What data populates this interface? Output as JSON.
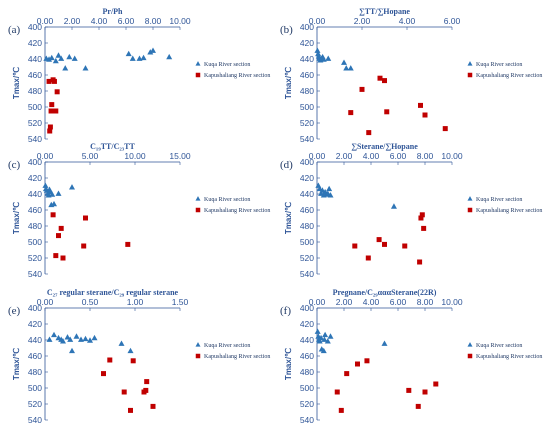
{
  "colors": {
    "kuqa": "#2e75b6",
    "kapushaliang": "#c00000",
    "axis": "#2f5597",
    "text": "#1f3864"
  },
  "chart_data": [
    {
      "type": "scatter",
      "panel": "(a)",
      "xlabel": "Pr/Ph",
      "ylabel": "Tmax/℃",
      "xlim": [
        0,
        10
      ],
      "xticks": [
        0,
        2,
        4,
        6,
        8,
        10
      ],
      "xtick_labels": [
        "0.00",
        "2.00",
        "4.00",
        "6.00",
        "8.00",
        "10.00"
      ],
      "ylim": [
        400,
        540
      ],
      "yticks": [
        400,
        420,
        440,
        460,
        480,
        500,
        520,
        540
      ],
      "x_axis_position": "top",
      "y_inverted": true,
      "grid": false,
      "legend_position": "right",
      "series": [
        {
          "name": "Kuqa River section",
          "marker": "triangle",
          "x": [
            0.1,
            0.3,
            0.5,
            0.8,
            1.0,
            1.2,
            1.5,
            1.8,
            2.2,
            3.0,
            6.2,
            6.5,
            7.0,
            7.3,
            7.8,
            8.0,
            9.2
          ],
          "y": [
            440,
            441,
            439,
            443,
            436,
            440,
            452,
            438,
            440,
            452,
            434,
            440,
            440,
            439,
            432,
            430,
            438
          ]
        },
        {
          "name": "Kapushaliang River section",
          "marker": "square",
          "x": [
            0.3,
            0.35,
            0.4,
            0.45,
            0.5,
            0.6,
            0.7,
            0.8,
            0.9
          ],
          "y": [
            468,
            530,
            525,
            505,
            497,
            466,
            468,
            505,
            481
          ]
        }
      ]
    },
    {
      "type": "scatter",
      "panel": "(b)",
      "xlabel": "∑TT/∑Hopane",
      "ylabel": "Tmax/℃",
      "xlim": [
        0,
        6
      ],
      "xticks": [
        0,
        2,
        4,
        6
      ],
      "xtick_labels": [
        "0.00",
        "2.00",
        "4.00",
        "6.00"
      ],
      "ylim": [
        400,
        540
      ],
      "yticks": [
        400,
        420,
        440,
        460,
        480,
        500,
        520,
        540
      ],
      "x_axis_position": "top",
      "y_inverted": true,
      "grid": false,
      "legend_position": "right",
      "series": [
        {
          "name": "Kuqa River section",
          "marker": "triangle",
          "x": [
            0.02,
            0.05,
            0.08,
            0.1,
            0.15,
            0.2,
            0.25,
            0.3,
            0.5,
            1.2,
            1.3,
            1.5
          ],
          "y": [
            430,
            434,
            437,
            440,
            442,
            440,
            438,
            441,
            440,
            445,
            452,
            452
          ]
        },
        {
          "name": "Kapushaliang River section",
          "marker": "square",
          "x": [
            1.5,
            2.0,
            2.3,
            2.8,
            3.0,
            3.1,
            4.6,
            4.8,
            5.7
          ],
          "y": [
            507,
            478,
            532,
            464,
            467,
            506,
            498,
            510,
            527
          ]
        }
      ]
    },
    {
      "type": "scatter",
      "panel": "(c)",
      "xlabel": "C₁₉TT/C₂₃TT",
      "ylabel": "Tmax/℃",
      "xlim": [
        0,
        15
      ],
      "xticks": [
        0,
        5,
        10,
        15
      ],
      "xtick_labels": [
        "0.00",
        "5.00",
        "10.00",
        "15.00"
      ],
      "ylim": [
        400,
        540
      ],
      "yticks": [
        400,
        420,
        440,
        460,
        480,
        500,
        520,
        540
      ],
      "x_axis_position": "top",
      "y_inverted": true,
      "grid": false,
      "legend_position": "right",
      "series": [
        {
          "name": "Kuqa River section",
          "marker": "triangle",
          "x": [
            0.05,
            0.1,
            0.2,
            0.3,
            0.4,
            0.5,
            0.6,
            0.7,
            0.8,
            1.0,
            1.5,
            3.0
          ],
          "y": [
            430,
            434,
            436,
            440,
            442,
            435,
            438,
            454,
            441,
            453,
            440,
            432
          ]
        },
        {
          "name": "Kapushaliang River section",
          "marker": "square",
          "x": [
            0.9,
            1.2,
            1.5,
            1.8,
            2.0,
            4.3,
            4.5,
            9.2
          ],
          "y": [
            466,
            517,
            492,
            483,
            520,
            505,
            470,
            503
          ]
        }
      ]
    },
    {
      "type": "scatter",
      "panel": "(d)",
      "xlabel": "∑Sterane/∑Hopane",
      "ylabel": "Tmax/℃",
      "xlim": [
        0,
        10
      ],
      "xticks": [
        0,
        2,
        4,
        6,
        8,
        10
      ],
      "xtick_labels": [
        "0.00",
        "2.00",
        "4.00",
        "6.00",
        "8.00",
        "10.00"
      ],
      "ylim": [
        400,
        540
      ],
      "yticks": [
        400,
        420,
        440,
        460,
        480,
        500,
        520,
        540
      ],
      "x_axis_position": "top",
      "y_inverted": true,
      "grid": false,
      "legend_position": "right",
      "series": [
        {
          "name": "Kuqa River section",
          "marker": "triangle",
          "x": [
            0.1,
            0.2,
            0.3,
            0.4,
            0.5,
            0.6,
            0.7,
            0.8,
            0.9,
            1.0,
            5.7
          ],
          "y": [
            430,
            434,
            440,
            436,
            442,
            438,
            441,
            440,
            434,
            442,
            456
          ]
        },
        {
          "name": "Kapushaliang River section",
          "marker": "square",
          "x": [
            2.8,
            3.8,
            4.6,
            5.0,
            6.5,
            7.6,
            7.7,
            7.8,
            7.9
          ],
          "y": [
            505,
            520,
            497,
            503,
            505,
            525,
            470,
            466,
            483
          ]
        }
      ]
    },
    {
      "type": "scatter",
      "panel": "(e)",
      "xlabel": "C₂₇ regular sterane/C₂₉ regular sterane",
      "ylabel": "Tmax/℃",
      "xlim": [
        0,
        1.5
      ],
      "xticks": [
        0,
        0.5,
        1.0,
        1.5
      ],
      "xtick_labels": [
        "0.00",
        "0.50",
        "1.00",
        "1.50"
      ],
      "ylim": [
        400,
        540
      ],
      "yticks": [
        400,
        420,
        440,
        460,
        480,
        500,
        520,
        540
      ],
      "x_axis_position": "top",
      "y_inverted": true,
      "grid": false,
      "legend_position": "right",
      "series": [
        {
          "name": "Kuqa River section",
          "marker": "triangle",
          "x": [
            0.05,
            0.1,
            0.15,
            0.18,
            0.2,
            0.25,
            0.28,
            0.3,
            0.35,
            0.4,
            0.45,
            0.5,
            0.55,
            0.85,
            0.95
          ],
          "y": [
            440,
            434,
            438,
            440,
            442,
            437,
            440,
            454,
            436,
            440,
            439,
            441,
            438,
            445,
            454
          ]
        },
        {
          "name": "Kapushaliang River section",
          "marker": "square",
          "x": [
            0.65,
            0.72,
            0.88,
            0.95,
            0.98,
            1.1,
            1.12,
            1.13,
            1.2
          ],
          "y": [
            482,
            465,
            505,
            528,
            466,
            505,
            503,
            492,
            523
          ]
        }
      ]
    },
    {
      "type": "scatter",
      "panel": "(f)",
      "xlabel": "Pregnane/C₂₉αααSterane(22R)",
      "ylabel": "Tmax/℃",
      "xlim": [
        0,
        10
      ],
      "xticks": [
        0,
        2,
        4,
        6,
        8,
        10
      ],
      "xtick_labels": [
        "0.00",
        "2.00",
        "4.00",
        "6.00",
        "8.00",
        "10.00"
      ],
      "ylim": [
        400,
        540
      ],
      "yticks": [
        400,
        420,
        440,
        460,
        480,
        500,
        520,
        540
      ],
      "x_axis_position": "top",
      "y_inverted": true,
      "grid": false,
      "legend_position": "right",
      "series": [
        {
          "name": "Kuqa River section",
          "marker": "triangle",
          "x": [
            0.05,
            0.1,
            0.15,
            0.2,
            0.3,
            0.35,
            0.5,
            0.55,
            0.6,
            0.8,
            1.0,
            5.0
          ],
          "y": [
            430,
            436,
            440,
            442,
            438,
            452,
            454,
            440,
            434,
            442,
            436,
            445
          ]
        },
        {
          "name": "Kapushaliang River section",
          "marker": "square",
          "x": [
            1.5,
            1.8,
            2.2,
            3.0,
            3.7,
            6.8,
            7.5,
            8.0,
            8.8
          ],
          "y": [
            505,
            528,
            482,
            470,
            466,
            503,
            523,
            505,
            495
          ]
        }
      ]
    }
  ]
}
